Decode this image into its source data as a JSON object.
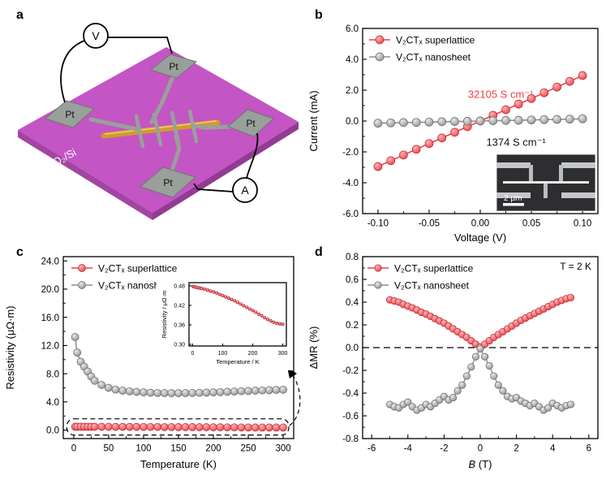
{
  "panels": {
    "a": {
      "label": "a",
      "substrate_label": "SiO₂/Si",
      "pad_label": "Pt",
      "voltmeter_label": "V",
      "ammeter_label": "A"
    },
    "b": {
      "label": "b",
      "inset_scale_label": "2 μm"
    },
    "c": {
      "label": "c"
    },
    "d": {
      "label": "d"
    }
  },
  "colors": {
    "superlattice": "#ee3e47",
    "superlattice_light": "#ffb5b7",
    "superlattice_edge": "#b5252e",
    "nanosheet": "#8f8f8f",
    "nanosheet_light": "#e9e9e9",
    "nanosheet_edge": "#646464",
    "substrate": "#c455c4",
    "gold": "#cf9c2c",
    "electrode": "#99a09b"
  },
  "chart_data": [
    {
      "id": "iv",
      "type": "scatter-line",
      "xlabel": "Voltage (V)",
      "ylabel": "Current (mA)",
      "xlim": [
        -0.115,
        0.115
      ],
      "ylim": [
        -6,
        6
      ],
      "xticks": [
        -0.1,
        -0.05,
        0,
        0.05,
        0.1
      ],
      "xtick_labels": [
        "-0.10",
        "-0.05",
        "0.00",
        "0.05",
        "0.10"
      ],
      "yticks": [
        -6,
        -4,
        -2,
        0,
        2,
        4,
        6
      ],
      "ytick_labels": [
        "-6.0",
        "-4.0",
        "-2.0",
        "0.0",
        "2.0",
        "4.0",
        "6.0"
      ],
      "legend": {
        "position": "top-left"
      },
      "series": [
        {
          "name": "V₂CTₓ superlattice",
          "color": "#ee3e47",
          "light": "#ffb5b7",
          "edge": "#b5252e",
          "x": [
            -0.1,
            -0.0875,
            -0.075,
            -0.0625,
            -0.05,
            -0.0375,
            -0.025,
            -0.0125,
            0,
            0.0125,
            0.025,
            0.0375,
            0.05,
            0.0625,
            0.075,
            0.0875,
            0.1
          ],
          "y": [
            -2.95,
            -2.57,
            -2.2,
            -1.83,
            -1.46,
            -1.1,
            -0.73,
            -0.37,
            0,
            0.37,
            0.73,
            1.1,
            1.46,
            1.83,
            2.2,
            2.57,
            2.95
          ]
        },
        {
          "name": "V₂CTₓ nanosheet",
          "color": "#8f8f8f",
          "light": "#e9e9e9",
          "edge": "#646464",
          "x": [
            -0.1,
            -0.0875,
            -0.075,
            -0.0625,
            -0.05,
            -0.0375,
            -0.025,
            -0.0125,
            0,
            0.0125,
            0.025,
            0.0375,
            0.05,
            0.0625,
            0.075,
            0.0875,
            0.1
          ],
          "y": [
            -0.14,
            -0.12,
            -0.1,
            -0.09,
            -0.07,
            -0.05,
            -0.03,
            -0.02,
            0,
            0.02,
            0.03,
            0.05,
            0.07,
            0.09,
            0.1,
            0.12,
            0.14
          ]
        }
      ],
      "annotations": [
        {
          "text": "32105 S cm⁻¹",
          "x": 0.02,
          "y": 1.5,
          "color": "#ee3e47"
        },
        {
          "text": "1374 S cm⁻¹",
          "x": 0.035,
          "y": -1.6,
          "color": "#111111"
        }
      ]
    },
    {
      "id": "rt",
      "type": "scatter-line",
      "xlabel": "Temperature (K)",
      "ylabel": "Resistivity (μΩ·m)",
      "xlim": [
        -15,
        315
      ],
      "ylim": [
        -1.2,
        24.6
      ],
      "xticks": [
        0,
        50,
        100,
        150,
        200,
        250,
        300
      ],
      "xtick_labels": [
        "0",
        "50",
        "100",
        "150",
        "200",
        "250",
        "300"
      ],
      "yticks": [
        0,
        4,
        8,
        12,
        16,
        20,
        24
      ],
      "ytick_labels": [
        "0.0",
        "4.0",
        "8.0",
        "12.0",
        "16.0",
        "20.0",
        "24.0"
      ],
      "legend": {
        "position": "top-left"
      },
      "dash_box": {
        "x_min": -10,
        "x_max": 308,
        "y_min": -0.7,
        "y_max": 1.6
      },
      "series": [
        {
          "name": "V₂CTₓ superlattice",
          "color": "#ee3e47",
          "light": "#ffb5b7",
          "edge": "#b5252e",
          "x": [
            2,
            5,
            10,
            15,
            20,
            25,
            30,
            40,
            50,
            60,
            70,
            80,
            90,
            100,
            110,
            120,
            130,
            140,
            150,
            160,
            170,
            180,
            190,
            200,
            210,
            220,
            230,
            240,
            250,
            260,
            270,
            280,
            290,
            300
          ],
          "y": [
            0.478,
            0.477,
            0.476,
            0.475,
            0.474,
            0.473,
            0.472,
            0.47,
            0.467,
            0.464,
            0.461,
            0.458,
            0.454,
            0.45,
            0.446,
            0.442,
            0.438,
            0.434,
            0.429,
            0.424,
            0.419,
            0.414,
            0.409,
            0.404,
            0.399,
            0.393,
            0.388,
            0.382,
            0.377,
            0.372,
            0.368,
            0.365,
            0.363,
            0.362
          ]
        },
        {
          "name": "V₂CTₓ nanosheet",
          "color": "#8f8f8f",
          "light": "#e9e9e9",
          "edge": "#646464",
          "x": [
            2,
            5,
            10,
            15,
            20,
            25,
            30,
            40,
            50,
            60,
            70,
            80,
            90,
            100,
            110,
            120,
            130,
            140,
            150,
            160,
            170,
            180,
            190,
            200,
            210,
            220,
            230,
            240,
            250,
            260,
            270,
            280,
            290,
            300
          ],
          "y": [
            13.2,
            11.0,
            9.7,
            9.0,
            8.3,
            7.6,
            7.0,
            6.4,
            6.0,
            5.75,
            5.6,
            5.5,
            5.42,
            5.35,
            5.3,
            5.27,
            5.25,
            5.24,
            5.24,
            5.25,
            5.27,
            5.29,
            5.32,
            5.35,
            5.39,
            5.43,
            5.47,
            5.51,
            5.55,
            5.59,
            5.63,
            5.67,
            5.7,
            5.73
          ]
        }
      ]
    },
    {
      "id": "rt_inset",
      "type": "scatter",
      "xlabel": "Temperature / K",
      "ylabel": "Resistivity / μΩ·m",
      "xlim": [
        -12,
        312
      ],
      "ylim": [
        0.295,
        0.49
      ],
      "xticks": [
        0,
        100,
        200,
        300
      ],
      "xtick_labels": [
        "0",
        "100",
        "200",
        "300"
      ],
      "yticks": [
        0.3,
        0.36,
        0.42,
        0.48
      ],
      "ytick_labels": [
        "0.30",
        "0.36",
        "0.42",
        "0.48"
      ],
      "series": [
        {
          "name": "V₂CTₓ superlattice",
          "color": "#ee3e47",
          "light": "#ffb5b7",
          "edge": "#b5252e",
          "x": [
            2,
            5,
            10,
            15,
            20,
            25,
            30,
            40,
            50,
            60,
            70,
            80,
            90,
            100,
            110,
            120,
            130,
            140,
            150,
            160,
            170,
            180,
            190,
            200,
            210,
            220,
            230,
            240,
            250,
            260,
            270,
            280,
            290,
            300
          ],
          "y": [
            0.478,
            0.477,
            0.476,
            0.475,
            0.474,
            0.473,
            0.472,
            0.47,
            0.467,
            0.464,
            0.461,
            0.458,
            0.454,
            0.45,
            0.446,
            0.442,
            0.438,
            0.434,
            0.429,
            0.424,
            0.419,
            0.414,
            0.409,
            0.404,
            0.399,
            0.393,
            0.388,
            0.382,
            0.377,
            0.372,
            0.368,
            0.365,
            0.363,
            0.362
          ]
        }
      ]
    },
    {
      "id": "mr",
      "type": "scatter-line",
      "xlabel": "B (T)",
      "xlabel_rich": [
        {
          "text": "B",
          "italic": true
        },
        {
          "text": " (T)",
          "italic": false
        }
      ],
      "ylabel": "ΔMR (%)",
      "xlim": [
        -6.5,
        6.5
      ],
      "ylim": [
        -0.8,
        0.8
      ],
      "xticks": [
        -6,
        -4,
        -2,
        0,
        2,
        4,
        6
      ],
      "xtick_labels": [
        "-6",
        "-4",
        "-2",
        "0",
        "2",
        "4",
        "6"
      ],
      "yticks": [
        -0.8,
        -0.6,
        -0.4,
        -0.2,
        0,
        0.2,
        0.4,
        0.6,
        0.8
      ],
      "ytick_labels": [
        "-0.8",
        "-0.6",
        "-0.4",
        "-0.2",
        "0.0",
        "0.2",
        "0.4",
        "0.6",
        "0.8"
      ],
      "legend": {
        "position": "top-left"
      },
      "zero_line": true,
      "corner_text": "T = 2 K",
      "series": [
        {
          "name": "V₂CTₓ superlattice",
          "color": "#ee3e47",
          "light": "#ffb5b7",
          "edge": "#b5252e",
          "x": [
            -5,
            -4.75,
            -4.5,
            -4.25,
            -4,
            -3.75,
            -3.5,
            -3.25,
            -3,
            -2.75,
            -2.5,
            -2.25,
            -2,
            -1.75,
            -1.5,
            -1.25,
            -1,
            -0.75,
            -0.5,
            -0.25,
            0,
            0.25,
            0.5,
            0.75,
            1,
            1.25,
            1.5,
            1.75,
            2,
            2.25,
            2.5,
            2.75,
            3,
            3.25,
            3.5,
            3.75,
            4,
            4.25,
            4.5,
            4.75,
            5
          ],
          "y": [
            0.42,
            0.41,
            0.4,
            0.38,
            0.365,
            0.35,
            0.33,
            0.31,
            0.295,
            0.275,
            0.255,
            0.235,
            0.215,
            0.19,
            0.165,
            0.14,
            0.115,
            0.09,
            0.06,
            0.03,
            0.005,
            0.03,
            0.06,
            0.09,
            0.115,
            0.14,
            0.165,
            0.19,
            0.215,
            0.24,
            0.26,
            0.28,
            0.3,
            0.32,
            0.34,
            0.36,
            0.38,
            0.4,
            0.415,
            0.43,
            0.44
          ]
        },
        {
          "name": "V₂CTₓ nanosheet",
          "color": "#8f8f8f",
          "light": "#e9e9e9",
          "edge": "#646464",
          "x": [
            -5,
            -4.75,
            -4.5,
            -4.25,
            -4,
            -3.75,
            -3.5,
            -3.25,
            -3,
            -2.75,
            -2.5,
            -2.25,
            -2,
            -1.75,
            -1.5,
            -1.25,
            -1,
            -0.75,
            -0.5,
            -0.25,
            0,
            0.25,
            0.5,
            0.75,
            1,
            1.25,
            1.5,
            1.75,
            2,
            2.25,
            2.5,
            2.75,
            3,
            3.25,
            3.5,
            3.75,
            4,
            4.25,
            4.5,
            4.75,
            5
          ],
          "y": [
            -0.5,
            -0.52,
            -0.53,
            -0.5,
            -0.48,
            -0.52,
            -0.55,
            -0.53,
            -0.5,
            -0.52,
            -0.49,
            -0.46,
            -0.43,
            -0.46,
            -0.44,
            -0.38,
            -0.33,
            -0.25,
            -0.17,
            -0.08,
            -0.01,
            -0.08,
            -0.16,
            -0.25,
            -0.33,
            -0.38,
            -0.43,
            -0.45,
            -0.44,
            -0.47,
            -0.49,
            -0.51,
            -0.49,
            -0.52,
            -0.55,
            -0.53,
            -0.49,
            -0.51,
            -0.53,
            -0.51,
            -0.5
          ]
        }
      ]
    }
  ]
}
